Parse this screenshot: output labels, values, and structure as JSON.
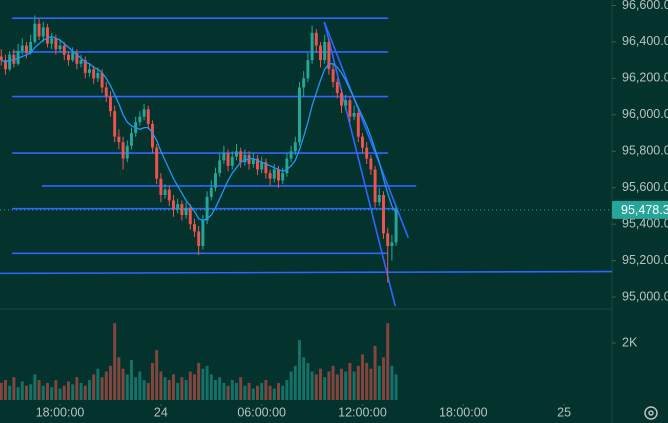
{
  "chart_data": {
    "type": "candlestick",
    "up_color": "#26a69a",
    "down_color": "#ef5350",
    "ma_color": "#2196f3",
    "line_color": "#2f66ff",
    "xlim": [
      -0.3,
      145.4
    ],
    "xticks": [
      {
        "value": 14,
        "label": "18:00:00"
      },
      {
        "value": 38,
        "label": "24"
      },
      {
        "value": 62,
        "label": "06:00:00"
      },
      {
        "value": 86,
        "label": "12:00:00"
      },
      {
        "value": 110,
        "label": "18:00:00"
      },
      {
        "value": 134,
        "label": "25"
      }
    ],
    "ylim": [
      94940,
      96630
    ],
    "yticks": [
      {
        "value": 95000,
        "label": "95,000.0"
      },
      {
        "value": 95200,
        "label": "95,200.0"
      },
      {
        "value": 95400,
        "label": "95,400.0"
      },
      {
        "value": 95600,
        "label": "95,600.0"
      },
      {
        "value": 95800,
        "label": "95,800.0"
      },
      {
        "value": 96000,
        "label": "96,000.0"
      },
      {
        "value": 96200,
        "label": "96,200.0"
      },
      {
        "value": 96400,
        "label": "96,400.0"
      },
      {
        "value": 96600,
        "label": "96,600.0"
      }
    ],
    "volume_ylim": [
      0,
      3160
    ],
    "volume_yticks": [
      {
        "value": 2000,
        "label": "2K"
      }
    ],
    "last_price": {
      "value": 95478.3,
      "label": "95,478.3"
    },
    "candles": [
      [
        96320,
        96360,
        96270,
        96300
      ],
      [
        96300,
        96330,
        96220,
        96250
      ],
      [
        96250,
        96350,
        96240,
        96330
      ],
      [
        96330,
        96360,
        96260,
        96280
      ],
      [
        96280,
        96390,
        96270,
        96350
      ],
      [
        96350,
        96420,
        96330,
        96380
      ],
      [
        96380,
        96400,
        96310,
        96340
      ],
      [
        96340,
        96440,
        96330,
        96400
      ],
      [
        96400,
        96545,
        96390,
        96500
      ],
      [
        96500,
        96530,
        96410,
        96430
      ],
      [
        96430,
        96510,
        96400,
        96480
      ],
      [
        96480,
        96500,
        96370,
        96390
      ],
      [
        96390,
        96450,
        96360,
        96420
      ],
      [
        96420,
        96440,
        96330,
        96360
      ],
      [
        96360,
        96410,
        96340,
        96380
      ],
      [
        96380,
        96400,
        96300,
        96330
      ],
      [
        96330,
        96350,
        96270,
        96300
      ],
      [
        96300,
        96370,
        96290,
        96340
      ],
      [
        96340,
        96360,
        96250,
        96280
      ],
      [
        96280,
        96330,
        96260,
        96300
      ],
      [
        96300,
        96320,
        96200,
        96230
      ],
      [
        96230,
        96280,
        96210,
        96250
      ],
      [
        96250,
        96270,
        96170,
        96200
      ],
      [
        96200,
        96260,
        96180,
        96230
      ],
      [
        96230,
        96250,
        96120,
        96150
      ],
      [
        96150,
        96180,
        96070,
        96100
      ],
      [
        96100,
        96130,
        95990,
        96020
      ],
      [
        96020,
        96050,
        95850,
        95880
      ],
      [
        95880,
        95920,
        95810,
        95850
      ],
      [
        95850,
        95880,
        95700,
        95760
      ],
      [
        95760,
        95860,
        95740,
        95830
      ],
      [
        95830,
        95930,
        95810,
        95900
      ],
      [
        95900,
        95990,
        95880,
        95960
      ],
      [
        95960,
        96020,
        95940,
        95990
      ],
      [
        95990,
        96060,
        95970,
        96030
      ],
      [
        96030,
        96050,
        95920,
        95950
      ],
      [
        95950,
        95970,
        95790,
        95820
      ],
      [
        95820,
        95840,
        95620,
        95650
      ],
      [
        95650,
        95680,
        95520,
        95560
      ],
      [
        95560,
        95620,
        95540,
        95590
      ],
      [
        95590,
        95610,
        95500,
        95530
      ],
      [
        95530,
        95560,
        95440,
        95480
      ],
      [
        95480,
        95540,
        95460,
        95510
      ],
      [
        95510,
        95530,
        95420,
        95450
      ],
      [
        95450,
        95520,
        95430,
        95490
      ],
      [
        95490,
        95510,
        95370,
        95400
      ],
      [
        95400,
        95430,
        95330,
        95360
      ],
      [
        95360,
        95390,
        95230,
        95280
      ],
      [
        95280,
        95450,
        95260,
        95420
      ],
      [
        95420,
        95580,
        95400,
        95550
      ],
      [
        95550,
        95640,
        95530,
        95600
      ],
      [
        95600,
        95710,
        95580,
        95680
      ],
      [
        95680,
        95790,
        95660,
        95750
      ],
      [
        95750,
        95830,
        95730,
        95790
      ],
      [
        95790,
        95810,
        95690,
        95720
      ],
      [
        95720,
        95800,
        95700,
        95770
      ],
      [
        95770,
        95840,
        95750,
        95800
      ],
      [
        95800,
        95820,
        95710,
        95740
      ],
      [
        95740,
        95810,
        95720,
        95780
      ],
      [
        95780,
        95800,
        95700,
        95730
      ],
      [
        95730,
        95790,
        95710,
        95760
      ],
      [
        95760,
        95780,
        95670,
        95700
      ],
      [
        95700,
        95770,
        95680,
        95740
      ],
      [
        95740,
        95760,
        95650,
        95680
      ],
      [
        95680,
        95700,
        95610,
        95650
      ],
      [
        95650,
        95730,
        95630,
        95700
      ],
      [
        95700,
        95720,
        95600,
        95640
      ],
      [
        95640,
        95710,
        95620,
        95680
      ],
      [
        95680,
        95790,
        95660,
        95760
      ],
      [
        95760,
        95830,
        95740,
        95800
      ],
      [
        95800,
        95880,
        95780,
        95850
      ],
      [
        95850,
        96180,
        95830,
        96150
      ],
      [
        96150,
        96240,
        96100,
        96200
      ],
      [
        96200,
        96340,
        96180,
        96300
      ],
      [
        96300,
        96490,
        96280,
        96450
      ],
      [
        96450,
        96470,
        96340,
        96380
      ],
      [
        96380,
        96400,
        96260,
        96300
      ],
      [
        96300,
        96440,
        96280,
        96400
      ],
      [
        96400,
        96420,
        96220,
        96250
      ],
      [
        96250,
        96280,
        96150,
        96180
      ],
      [
        96180,
        96200,
        96090,
        96120
      ],
      [
        96120,
        96140,
        96010,
        96050
      ],
      [
        96050,
        96110,
        96030,
        96080
      ],
      [
        96080,
        96100,
        95960,
        95990
      ],
      [
        95990,
        96050,
        95970,
        96010
      ],
      [
        96010,
        96030,
        95850,
        95880
      ],
      [
        95880,
        95900,
        95790,
        95820
      ],
      [
        95820,
        95850,
        95730,
        95760
      ],
      [
        95760,
        95780,
        95670,
        95700
      ],
      [
        95700,
        95720,
        95490,
        95520
      ],
      [
        95520,
        95600,
        95500,
        95560
      ],
      [
        95560,
        95580,
        95320,
        95350
      ],
      [
        95350,
        95380,
        95080,
        95280
      ],
      [
        95280,
        95340,
        95200,
        95300
      ],
      [
        95300,
        95500,
        95280,
        95478.3
      ]
    ],
    "volume": [
      600,
      700,
      500,
      800,
      450,
      650,
      500,
      550,
      900,
      700,
      500,
      600,
      450,
      700,
      400,
      500,
      650,
      550,
      800,
      600,
      500,
      700,
      900,
      1100,
      800,
      1000,
      1200,
      2700,
      1500,
      1100,
      900,
      1400,
      800,
      1000,
      700,
      600,
      1300,
      1750,
      1000,
      800,
      700,
      900,
      600,
      800,
      700,
      1000,
      900,
      1300,
      1100,
      1200,
      900,
      700,
      800,
      600,
      500,
      700,
      600,
      800,
      500,
      600,
      400,
      500,
      600,
      700,
      500,
      400,
      600,
      500,
      700,
      1000,
      1200,
      2100,
      1500,
      1300,
      1000,
      900,
      1100,
      800,
      1000,
      1200,
      900,
      1100,
      1000,
      1300,
      1000,
      1200,
      1600,
      1300,
      1100,
      1900,
      1200,
      1500,
      2700,
      1200,
      900
    ],
    "ma": [
      96300,
      96290,
      96300,
      96300,
      96310,
      96320,
      96330,
      96340,
      96370,
      96390,
      96410,
      96420,
      96430,
      96420,
      96410,
      96390,
      96370,
      96350,
      96330,
      96310,
      96290,
      96280,
      96260,
      96250,
      96230,
      96200,
      96160,
      96110,
      96060,
      96000,
      95960,
      95940,
      95930,
      95920,
      95930,
      95930,
      95900,
      95860,
      95800,
      95750,
      95700,
      95650,
      95610,
      95570,
      95530,
      95500,
      95470,
      95430,
      95420,
      95430,
      95450,
      95490,
      95540,
      95590,
      95640,
      95680,
      95710,
      95740,
      95750,
      95760,
      95760,
      95750,
      95740,
      95730,
      95720,
      95710,
      95700,
      95690,
      95700,
      95720,
      95750,
      95810,
      95880,
      95960,
      96050,
      96120,
      96190,
      96250,
      96280,
      96280,
      96260,
      96230,
      96190,
      96140,
      96090,
      96040,
      95990,
      95940,
      95880,
      95810,
      95740,
      95650,
      95570,
      95500,
      95460
    ],
    "drawings": [
      {
        "from": [
          2.6,
          96530
        ],
        "to": [
          92.1,
          96530
        ]
      },
      {
        "from": [
          2.6,
          96345
        ],
        "to": [
          92.1,
          96345
        ]
      },
      {
        "from": [
          2.6,
          96100
        ],
        "to": [
          92.1,
          96100
        ]
      },
      {
        "from": [
          2.6,
          95790
        ],
        "to": [
          92.1,
          95790
        ]
      },
      {
        "from": [
          9.7,
          95610
        ],
        "to": [
          98.8,
          95610
        ]
      },
      {
        "from": [
          2.6,
          95485
        ],
        "to": [
          94.5,
          95485
        ]
      },
      {
        "from": [
          2.6,
          95240
        ],
        "to": [
          92.1,
          95240
        ]
      },
      {
        "from": [
          -0.3,
          95130
        ],
        "to": [
          145.4,
          95140
        ]
      },
      {
        "from": [
          76.9,
          96510
        ],
        "to": [
          96.9,
          95325
        ]
      },
      {
        "from": [
          76.9,
          96510
        ],
        "to": [
          93.8,
          94950
        ]
      }
    ]
  }
}
